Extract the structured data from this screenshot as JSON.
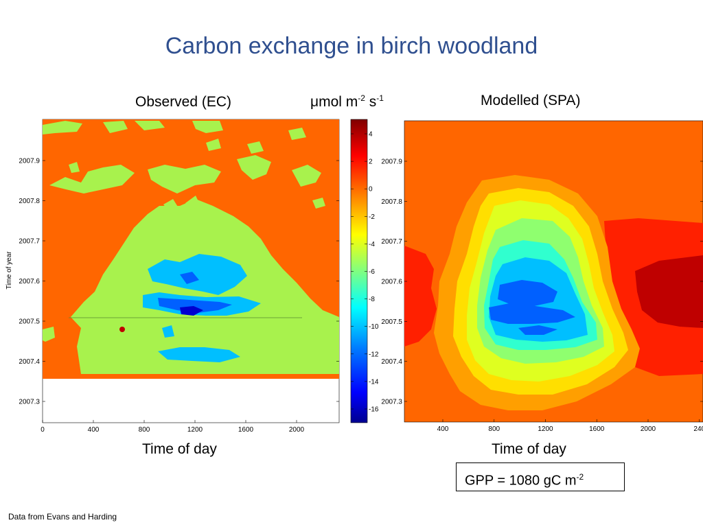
{
  "title": "Carbon exchange in birch woodland",
  "colors": {
    "title": "#2F4F8F",
    "background": "#FF6600",
    "green": "#A8F24D",
    "scale": [
      "#00008F",
      "#0000FF",
      "#0060FF",
      "#00BFFF",
      "#30FFCF",
      "#8FFF6F",
      "#DFFF20",
      "#FFDF00",
      "#FF9F00",
      "#FF6600",
      "#FF2000",
      "#BF0000",
      "#800000"
    ]
  },
  "colorbar": {
    "title_main": "μmol m",
    "title_exp1": "-2",
    "title_mid": " s",
    "title_exp2": "-1",
    "ticks": [
      "4",
      "2",
      "0",
      "-2",
      "-4",
      "-6",
      "-8",
      "-10",
      "-12",
      "-14",
      "-16"
    ]
  },
  "chart_data": [
    {
      "type": "heatmap",
      "title": "Observed (EC)",
      "xlabel": "Time of day",
      "ylabel": "Time of year",
      "xticks": [
        "0",
        "400",
        "800",
        "1200",
        "1600",
        "2000"
      ],
      "yticks": [
        "2007.9",
        "2007.8",
        "2007.7",
        "2007.6",
        "2007.5",
        "2007.4",
        "2007.3"
      ],
      "xlim": [
        0,
        2400
      ],
      "ylim": [
        2007.25,
        2008.0
      ],
      "data_coverage_ylim": [
        2007.36,
        2008.0
      ],
      "color_range": [
        -17,
        5
      ],
      "legend": "colorbar right"
    },
    {
      "type": "heatmap",
      "title": "Modelled (SPA)",
      "xlabel": "Time of day",
      "ylabel": "",
      "xticks": [
        "400",
        "800",
        "1200",
        "1600",
        "2000",
        "240"
      ],
      "yticks": [
        "2007.9",
        "2007.8",
        "2007.7",
        "2007.6",
        "2007.5",
        "2007.4",
        "2007.3"
      ],
      "xlim": [
        0,
        2400
      ],
      "ylim": [
        2007.25,
        2008.0
      ],
      "color_range": [
        -17,
        5
      ],
      "annotation": {
        "main": "GPP = 1080 gC m",
        "exp": "-2"
      }
    }
  ],
  "source_note": "Data from Evans and Harding"
}
